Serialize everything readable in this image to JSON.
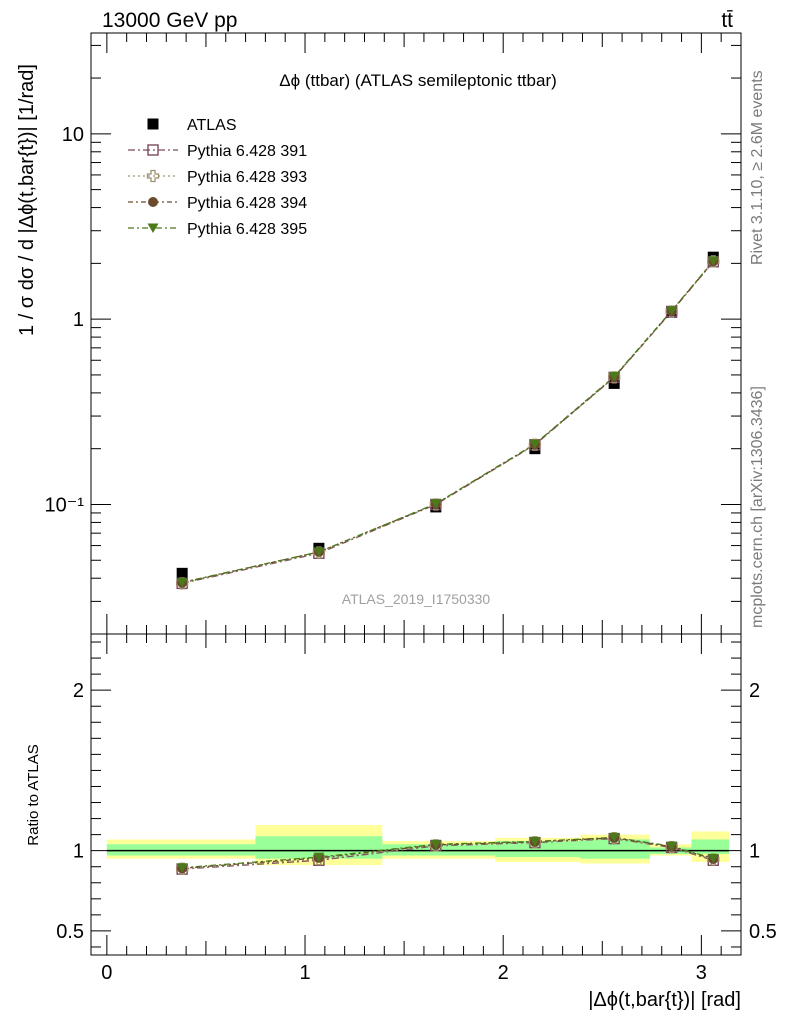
{
  "header": {
    "left": "13000 GeV pp",
    "right": "tt̄"
  },
  "side_labels": {
    "rivet": "Rivet 3.1.10, ≥ 2.6M events",
    "mcplots": "mcplots.cern.ch [arXiv:1306.3436]"
  },
  "colors": {
    "atlas": "#000000",
    "s391": "#7b4a5e",
    "s393": "#a09070",
    "s394": "#6b4a2e",
    "s395": "#4a7a1a",
    "band_outer": "#ffff99",
    "band_inner": "#99ff99"
  },
  "chart_data": [
    {
      "type": "line",
      "title": "Δϕ (ttbar) (ATLAS semileptonic ttbar)",
      "watermark": "ATLAS_2019_I1750330",
      "ylabel": "1 / σ dσ / d |Δϕ(t,bar{t})| [1/rad]",
      "yscale": "log",
      "ylim": [
        0.02,
        35
      ],
      "xlim": [
        -0.08,
        3.2
      ],
      "yticks": [
        {
          "value": 10,
          "label": "10"
        },
        {
          "value": 1,
          "label": "1"
        },
        {
          "value": 0.1,
          "label": "10⁻¹"
        }
      ],
      "legend_position": "top-left",
      "x": [
        0.38,
        1.07,
        1.66,
        2.16,
        2.56,
        2.85,
        3.06
      ],
      "atlas": {
        "name": "ATLAS",
        "values": [
          0.0425,
          0.058,
          0.097,
          0.2,
          0.45,
          1.09,
          2.16
        ]
      },
      "series": [
        {
          "name": "Pythia 6.428 391",
          "marker": "square-open",
          "values": [
            0.0375,
            0.0545,
            0.1,
            0.21,
            0.485,
            1.1,
            2.04
          ]
        },
        {
          "name": "Pythia 6.428 393",
          "marker": "cross-open",
          "values": [
            0.0375,
            0.055,
            0.1,
            0.21,
            0.485,
            1.1,
            2.05
          ]
        },
        {
          "name": "Pythia 6.428 394",
          "marker": "circle",
          "values": [
            0.0378,
            0.0555,
            0.1005,
            0.211,
            0.487,
            1.105,
            2.05
          ]
        },
        {
          "name": "Pythia 6.428 395",
          "marker": "triangle-down",
          "values": [
            0.038,
            0.0555,
            0.101,
            0.212,
            0.49,
            1.11,
            2.06
          ]
        }
      ]
    },
    {
      "type": "line",
      "ylabel": "Ratio to ATLAS",
      "xlabel": "|Δϕ(t,bar{t})| [rad]",
      "ylim": [
        0.35,
        2.35
      ],
      "xlim": [
        -0.08,
        3.2
      ],
      "xticks": [
        0,
        1,
        2,
        3
      ],
      "yticks": [
        {
          "value": 2,
          "label": "2"
        },
        {
          "value": 1,
          "label": "1"
        },
        {
          "value": 0.5,
          "label": "0.5"
        }
      ],
      "bins": [
        {
          "lo": 0.0,
          "hi": 0.75,
          "inner": [
            0.97,
            1.04
          ],
          "outer": [
            0.95,
            1.07
          ]
        },
        {
          "lo": 0.75,
          "hi": 1.39,
          "inner": [
            0.95,
            1.09
          ],
          "outer": [
            0.91,
            1.16
          ]
        },
        {
          "lo": 1.39,
          "hi": 1.96,
          "inner": [
            0.97,
            1.04
          ],
          "outer": [
            0.95,
            1.06
          ]
        },
        {
          "lo": 1.96,
          "hi": 2.39,
          "inner": [
            0.96,
            1.06
          ],
          "outer": [
            0.93,
            1.08
          ]
        },
        {
          "lo": 2.39,
          "hi": 2.74,
          "inner": [
            0.95,
            1.07
          ],
          "outer": [
            0.92,
            1.1
          ]
        },
        {
          "lo": 2.74,
          "hi": 2.95,
          "inner": [
            0.98,
            1.02
          ],
          "outer": [
            0.97,
            1.04
          ]
        },
        {
          "lo": 2.95,
          "hi": 3.14,
          "inner": [
            0.98,
            1.07
          ],
          "outer": [
            0.93,
            1.12
          ]
        }
      ],
      "x": [
        0.38,
        1.07,
        1.66,
        2.16,
        2.56,
        2.85,
        3.06
      ],
      "series": [
        {
          "name": "Pythia 6.428 391",
          "values": [
            0.885,
            0.94,
            1.03,
            1.05,
            1.075,
            1.02,
            0.94
          ]
        },
        {
          "name": "Pythia 6.428 393",
          "values": [
            0.887,
            0.947,
            1.033,
            1.052,
            1.078,
            1.022,
            0.945
          ]
        },
        {
          "name": "Pythia 6.428 394",
          "values": [
            0.89,
            0.955,
            1.036,
            1.055,
            1.08,
            1.025,
            0.948
          ]
        },
        {
          "name": "Pythia 6.428 395",
          "values": [
            0.894,
            0.96,
            1.04,
            1.058,
            1.083,
            1.028,
            0.952
          ]
        }
      ]
    }
  ]
}
